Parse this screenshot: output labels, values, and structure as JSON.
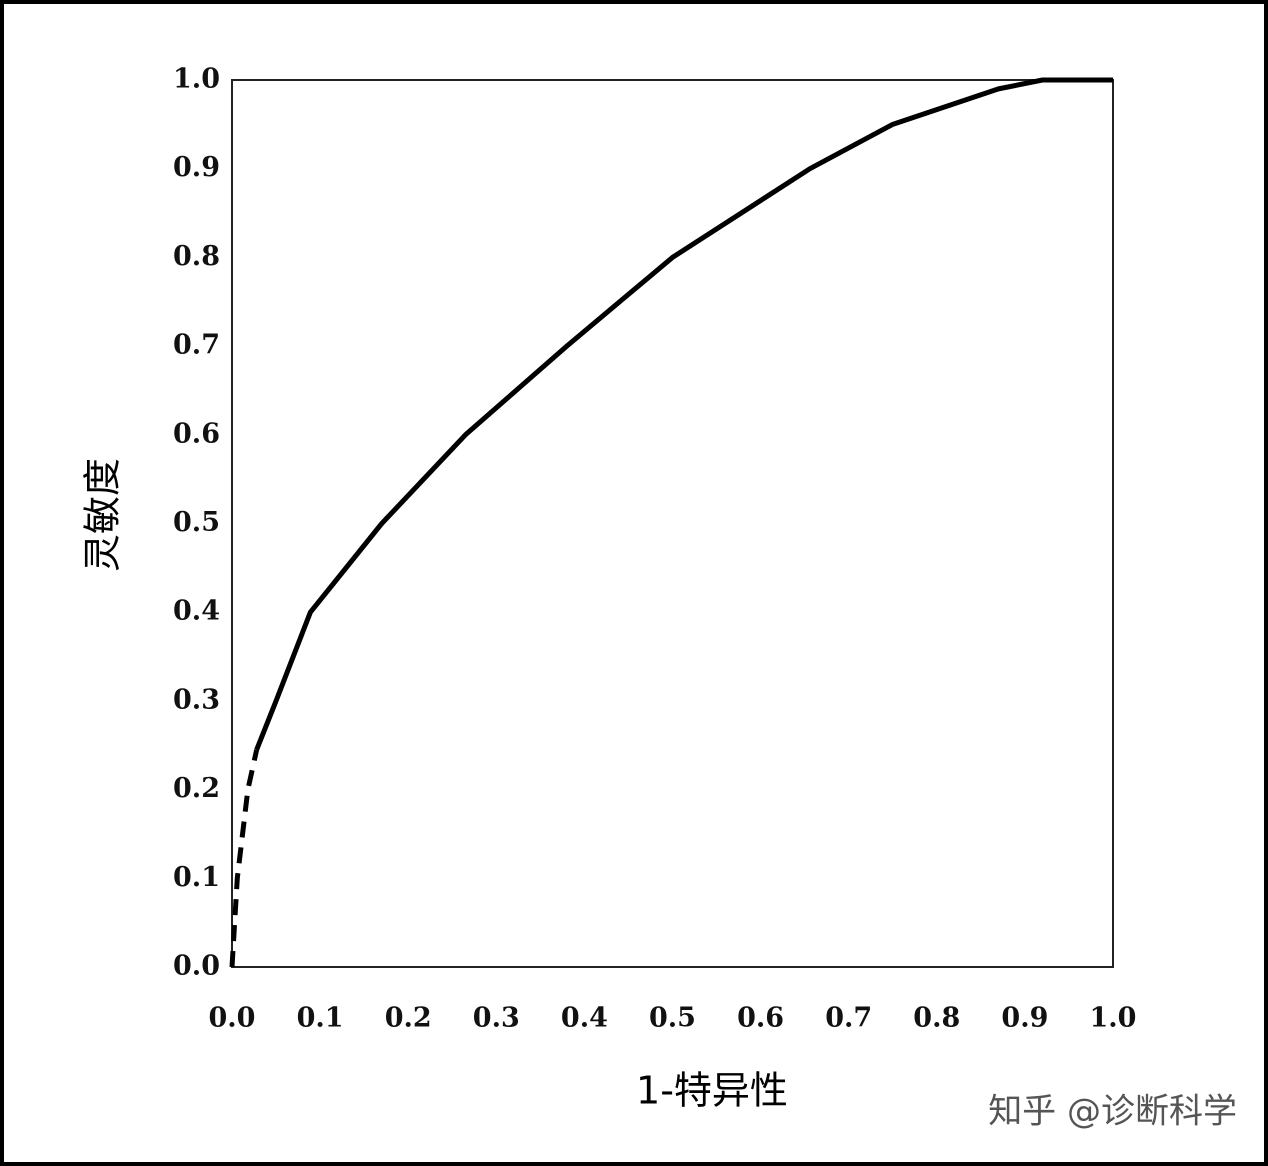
{
  "chart_data": {
    "type": "line",
    "x_label": "1-特异性",
    "y_label": "灵敏度",
    "watermark": "知乎 @诊断科学",
    "series": [
      {
        "color": "#000000",
        "dashed": true,
        "x": [
          0,
          0.006,
          0.018,
          0.028
        ],
        "values": [
          0,
          0.1,
          0.2,
          0.245
        ]
      },
      {
        "color": "#000000",
        "dashed": false,
        "x": [
          0.028,
          0.05,
          0.089,
          0.17,
          0.265,
          0.38,
          0.5,
          0.656,
          0.75,
          0.87,
          0.92,
          1.0
        ],
        "values": [
          0.245,
          0.3,
          0.4,
          0.5,
          0.6,
          0.7,
          0.8,
          0.9,
          0.95,
          0.99,
          1.0,
          1.0
        ]
      }
    ],
    "xlim": [
      0,
      1.0
    ],
    "ylim": [
      0,
      1.0
    ],
    "xticks": [
      {
        "value": 0,
        "label": "0.0"
      },
      0.1,
      0.2,
      0.3,
      0.4,
      0.5,
      0.6,
      0.7,
      0.8,
      0.9,
      {
        "value": 1.0,
        "label": "1.0"
      }
    ],
    "yticks": [
      {
        "value": 0,
        "label": "0.0"
      },
      0.1,
      0.2,
      0.3,
      0.4,
      0.5,
      0.6,
      0.7,
      0.8,
      0.9,
      {
        "value": 1.0,
        "label": "1.0"
      }
    ],
    "grid": false
  }
}
